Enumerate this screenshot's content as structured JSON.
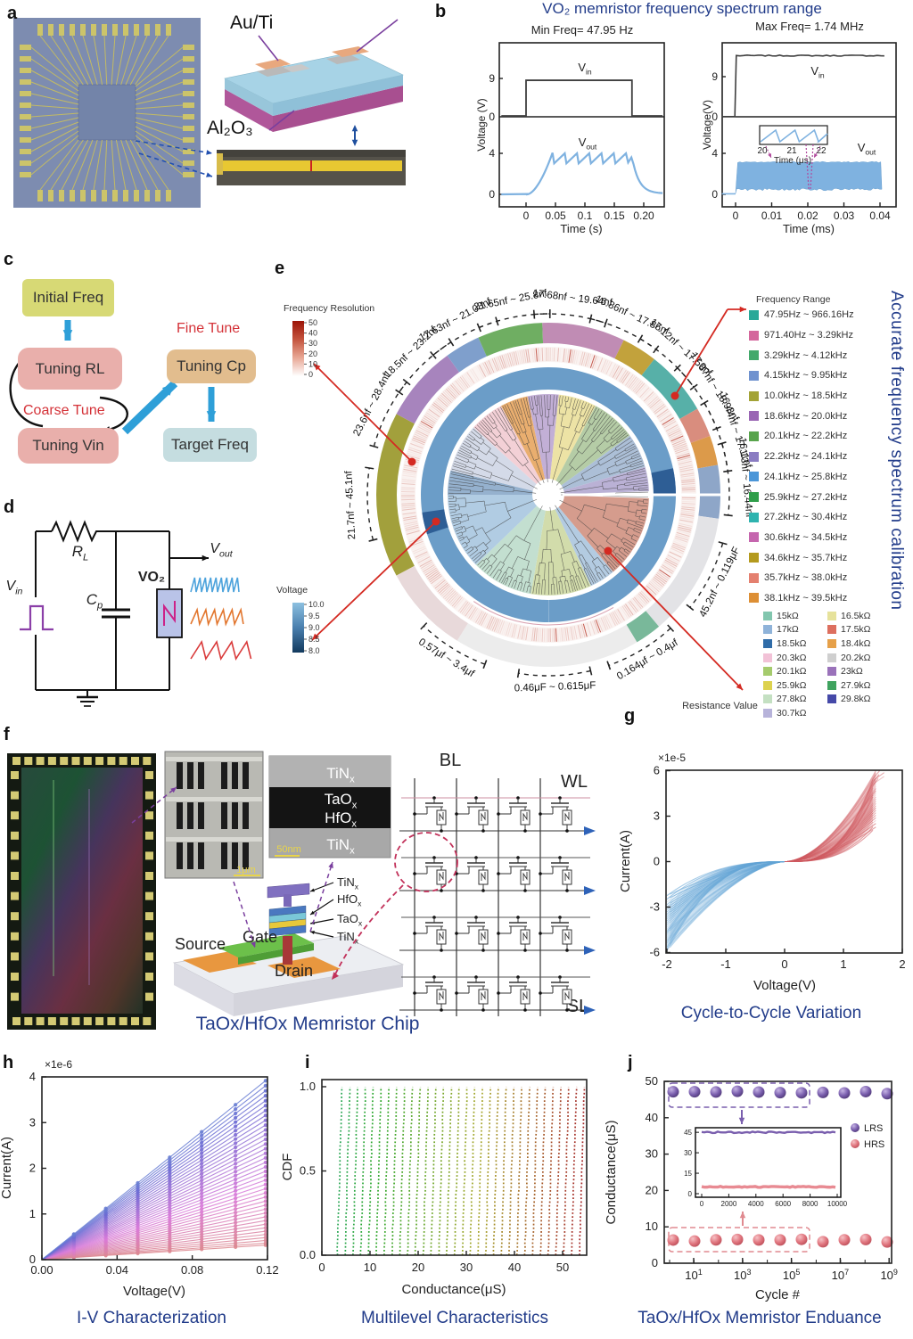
{
  "colors": {
    "caption": "#223c8a",
    "red_accent": "#d42a22",
    "blue_arrow": "#2e9fd8",
    "vout_blue": "#7fb2e0",
    "vin_gray": "#3f3f3f",
    "purple_arrow": "#7a3f9e",
    "magenta": "#b0489c"
  },
  "panel_a": {
    "letter": "a",
    "au_ti": "Au/Ti",
    "al2o3": "Al₂O₃"
  },
  "panel_b": {
    "letter": "b",
    "title": "VO₂ memristor frequency spectrum range",
    "left": {
      "subtitle": "Min Freq= 47.95 Hz",
      "ylabel": "Voltage (V)",
      "xlabel": "Time (s)",
      "vin_label": [
        "V",
        "in"
      ],
      "vout_label": [
        "V",
        "out"
      ],
      "x_ticks": [
        "0",
        "0.05",
        "0.1",
        "0.15",
        "0.20"
      ],
      "vin_ticks": [
        "9",
        "0"
      ],
      "vout_ticks": [
        "4",
        "0"
      ]
    },
    "right": {
      "subtitle": "Max Freq= 1.74 MHz",
      "ylabel": "Voltage(V)",
      "xlabel": "Time (ms)",
      "vin_label": [
        "V",
        "in"
      ],
      "vout_label": [
        "V",
        "out"
      ],
      "x_ticks": [
        "0",
        "0.01",
        "0.02",
        "0.03",
        "0.04"
      ],
      "vin_ticks": [
        "9",
        "0"
      ],
      "vout_ticks": [
        "4",
        "0"
      ],
      "inset_ticks": [
        "20",
        "21",
        "22"
      ],
      "inset_xlabel": "Time (μs)"
    }
  },
  "panel_c": {
    "letter": "c",
    "boxes": {
      "initial": {
        "label": "Initial Freq",
        "color": "#d7d975"
      },
      "rl": {
        "label": "Tuning RL",
        "color": "#e9afab"
      },
      "vin": {
        "label": "Tuning Vin",
        "color": "#e9afab"
      },
      "cp": {
        "label": "Tuning Cp",
        "color": "#e2bd8e"
      },
      "target": {
        "label": "Target Freq",
        "color": "#c5dde0"
      }
    },
    "coarse": "Coarse Tune",
    "fine": "Fine Tune"
  },
  "panel_d": {
    "letter": "d",
    "rl": [
      "R",
      "L"
    ],
    "cp": [
      "C",
      "p"
    ],
    "vo2": "VO₂",
    "vin": [
      "V",
      "in"
    ],
    "vout": [
      "V",
      "out"
    ]
  },
  "panel_e": {
    "letter": "e",
    "freq_res_legend": {
      "title": "Frequency Resolution",
      "ticks": [
        "50",
        "40",
        "30",
        "20",
        "10",
        "0"
      ]
    },
    "voltage_legend": {
      "title": "Voltage",
      "ticks": [
        "10.0",
        "9.5",
        "9.0",
        "8.5",
        "8.0"
      ]
    },
    "freq_range_legend": {
      "title": "Frequency Range",
      "items": [
        {
          "color": "#29a898",
          "label": "47.95Hz ~ 966.16Hz"
        },
        {
          "color": "#d4679c",
          "label": "971.40Hz ~ 3.29kHz"
        },
        {
          "color": "#43a96b",
          "label": "3.29kHz ~ 4.12kHz"
        },
        {
          "color": "#6f92cf",
          "label": "4.15kHz ~ 9.95kHz"
        },
        {
          "color": "#a3a336",
          "label": "10.0kHz ~ 18.5kHz"
        },
        {
          "color": "#9a66b4",
          "label": "18.6kHz ~ 20.0kHz"
        },
        {
          "color": "#58a44c",
          "label": "20.1kHz ~ 22.2kHz"
        },
        {
          "color": "#8a7cc2",
          "label": "22.2kHz ~ 24.1kHz"
        },
        {
          "color": "#4b96d8",
          "label": "24.1kHz ~ 25.8kHz"
        },
        {
          "color": "#2f9e4a",
          "label": "25.9kHz ~ 27.2kHz"
        },
        {
          "color": "#2fb3af",
          "label": "27.2kHz ~ 30.4kHz"
        },
        {
          "color": "#c566ae",
          "label": "30.6kHz ~ 34.5kHz"
        },
        {
          "color": "#b49a1e",
          "label": "34.6kHz ~ 35.7kHz"
        },
        {
          "color": "#e4806f",
          "label": "35.7kHz ~ 38.0kHz"
        },
        {
          "color": "#dd8f35",
          "label": "38.1kHz ~ 39.5kHz"
        }
      ]
    },
    "resistance_legend": {
      "title": "Resistance Value",
      "col1": [
        {
          "color": "#82c6ae",
          "label": "15kΩ"
        },
        {
          "color": "#8fb3d9",
          "label": "17kΩ"
        },
        {
          "color": "#2f6ca8",
          "label": "18.5kΩ"
        },
        {
          "color": "#f2c2d7",
          "label": "20.3kΩ"
        },
        {
          "color": "#a5cb6d",
          "label": "20.1kΩ"
        },
        {
          "color": "#ddd24e",
          "label": "25.9kΩ"
        },
        {
          "color": "#c4e0c2",
          "label": "27.8kΩ"
        },
        {
          "color": "#b7b3da",
          "label": "30.7kΩ"
        }
      ],
      "col2": [
        {
          "color": "#e6e29b",
          "label": "16.5kΩ"
        },
        {
          "color": "#dd6f5f",
          "label": "17.5kΩ"
        },
        {
          "color": "#e6a049",
          "label": "18.4kΩ"
        },
        {
          "color": "#cfcfcf",
          "label": "20.2kΩ"
        },
        {
          "color": "#9a72ba",
          "label": "23kΩ"
        },
        {
          "color": "#3fa35f",
          "label": "27.9kΩ"
        },
        {
          "color": "#4549a8",
          "label": "29.8kΩ"
        }
      ]
    },
    "side_title": "Accurate frequency spectrum calibration"
  },
  "panel_f": {
    "letter": "f",
    "sem_scale": "1μm",
    "tem_scale": "50nm",
    "tem_layers": [
      [
        "TiN",
        "x"
      ],
      [
        "TaO",
        "x"
      ],
      [
        "HfO",
        "x"
      ],
      [
        "TiN",
        "x"
      ]
    ],
    "stack_labels": [
      [
        "TiN",
        "x"
      ],
      [
        "HfO",
        "x"
      ],
      [
        "TaO",
        "x"
      ],
      [
        "TiN",
        "x"
      ]
    ],
    "source": "Source",
    "gate": "Gate",
    "drain": "Drain",
    "bl": "BL",
    "wl": "WL",
    "sl": "SL",
    "caption": "TaOx/HfOx Memristor Chip"
  },
  "panel_g": {
    "letter": "g",
    "caption": "Cycle-to-Cycle Variation"
  },
  "panel_h": {
    "letter": "h",
    "caption": "I-V Characterization"
  },
  "panel_i": {
    "letter": "i",
    "caption": "Multilevel Characteristics"
  },
  "panel_j": {
    "letter": "j",
    "caption": "TaOx/HfOx  Memristor Enduance",
    "legend": [
      "LRS",
      "HRS"
    ]
  },
  "chart_data": [
    {
      "panel": "b-left",
      "type": "line",
      "title": "Min Freq= 47.95 Hz",
      "xlabel": "Time (s)",
      "ylabel": "Voltage (V)",
      "xlim": [
        -0.045,
        0.235
      ],
      "x_ticks": [
        0,
        0.05,
        0.1,
        0.15,
        0.2
      ],
      "series": [
        {
          "name": "Vin",
          "color": "#3f3f3f",
          "shape": "pulse",
          "high": 8.5,
          "low": 0,
          "t_on": 0,
          "t_off": 0.18,
          "axis_ticks": [
            9,
            0
          ]
        },
        {
          "name": "Vout",
          "color": "#7fb2e0",
          "shape": "relaxation-oscillation",
          "peak": 4.05,
          "trough": 3.0,
          "t_rise_end": 0.045,
          "t_end": 0.18,
          "period": 0.0208,
          "decay_to": 0.1,
          "axis_ticks": [
            4,
            0
          ]
        }
      ]
    },
    {
      "panel": "b-right",
      "type": "line",
      "title": "Max Freq= 1.74 MHz",
      "xlabel": "Time (ms)",
      "ylabel": "Voltage(V)",
      "xlim": [
        -0.004,
        0.0435
      ],
      "x_ticks": [
        0,
        0.01,
        0.02,
        0.03,
        0.04
      ],
      "series": [
        {
          "name": "Vin",
          "color": "#3f3f3f",
          "shape": "step",
          "high": 14,
          "step_at": 0,
          "axis_ticks": [
            9,
            0
          ]
        },
        {
          "name": "Vout",
          "color": "#7fb2e0",
          "shape": "dense-oscillation-band",
          "band_low": 0.35,
          "band_high": 3.2,
          "t_start": 0,
          "t_end": 0.0405,
          "axis_ticks": [
            4,
            0
          ]
        }
      ],
      "inset": {
        "x_ticks": [
          20,
          21,
          22
        ],
        "xlabel": "Time (μs)",
        "waveform": "sawtooth",
        "cycles": 3.5
      }
    },
    {
      "panel": "e",
      "type": "circular-dendrogram",
      "cap_labels": [
        {
          "angle": -93,
          "text": "21.7nf ~ 45.1nf"
        },
        {
          "angle": -63,
          "text": "23.6nf ~ 28.4nf"
        },
        {
          "angle": -44,
          "text": "18.5nf ~ 23.2nf"
        },
        {
          "angle": -28,
          "text": "17.63nf ~ 21.08nf"
        },
        {
          "angle": -11,
          "text": "21.65nf ~ 25.8nf"
        },
        {
          "angle": 7,
          "text": "17.68nf ~ 19.64nf"
        },
        {
          "angle": 25,
          "text": "16.86nf ~ 17.86nf"
        },
        {
          "angle": 42,
          "text": "17.12nf ~ 17.50nf"
        },
        {
          "angle": 57,
          "text": "17.87nf ~ 18.93nf"
        },
        {
          "angle": 71,
          "text": "16.44nf ~ 17.11nf"
        },
        {
          "angle": 85,
          "text": "16.13nf ~ 16.44nf"
        },
        {
          "angle": 117,
          "text": "45.2nf ~ 0.119μF"
        },
        {
          "angle": 149,
          "text": "0.164μf ~ 0.4μf"
        },
        {
          "angle": 178,
          "text": "0.46μF ~ 0.615μF"
        },
        {
          "angle": 212,
          "text": "0.57μf ~ 3.4μf"
        }
      ],
      "freq_resolution_scale": [
        50,
        40,
        30,
        20,
        10,
        0
      ],
      "voltage_scale": [
        10.0,
        9.5,
        9.0,
        8.5,
        8.0
      ],
      "wedges": [
        [
          -48,
          -28,
          "#f2cbd1"
        ],
        [
          -28,
          -12,
          "#e7a55f"
        ],
        [
          -12,
          6,
          "#bba6d1"
        ],
        [
          6,
          28,
          "#ebe09b"
        ],
        [
          28,
          54,
          "#adc79c"
        ],
        [
          54,
          74,
          "#a3b8d3"
        ],
        [
          74,
          88,
          "#b3a8d0"
        ],
        [
          92,
          140,
          "#d09181"
        ],
        [
          140,
          155,
          "#abc5de"
        ],
        [
          155,
          190,
          "#cdd8a2"
        ],
        [
          190,
          226,
          "#bcdccb"
        ],
        [
          226,
          270,
          "#a9c6e0"
        ],
        [
          270,
          284,
          "#8aa8c9"
        ],
        [
          284,
          312,
          "#cfd6e6"
        ]
      ],
      "ring_segments": [
        [
          -118,
          -62,
          "#a2a03c"
        ],
        [
          -62,
          -36,
          "#a784bd"
        ],
        [
          -36,
          -24,
          "#7f9fcc"
        ],
        [
          -24,
          -2,
          "#6fae62"
        ],
        [
          -2,
          26,
          "#c08cb4"
        ],
        [
          26,
          38,
          "#c2a23c"
        ],
        [
          38,
          60,
          "#57b0a8"
        ],
        [
          60,
          70,
          "#d98d7e"
        ],
        [
          70,
          80,
          "#dc9a4a"
        ],
        [
          80,
          98,
          "#8ea6c8"
        ],
        [
          98,
          140,
          "#e3e3e6"
        ],
        [
          140,
          149,
          "#79b89a"
        ],
        [
          149,
          212,
          "#ececec"
        ],
        [
          212,
          242,
          "#e8d9da"
        ]
      ],
      "blue_ring_color": "#6b9dc8",
      "blue_ring_dark_segments": [
        [
          78,
          90
        ],
        [
          252,
          262
        ]
      ]
    },
    {
      "panel": "g",
      "type": "line",
      "title": "Cycle-to-Cycle Variation",
      "xlabel": "Voltage(V)",
      "ylabel": "Current(A)",
      "scale_note": "×1e-5",
      "xlim": [
        -2,
        2
      ],
      "ylim": [
        -6,
        6
      ],
      "x_ticks": [
        "-2",
        "-1",
        "0",
        "1",
        "2"
      ],
      "y_ticks": [
        "6",
        "3",
        "0",
        "-3",
        "-6"
      ],
      "n_cycles": 26,
      "pos_color": "#cf5a60",
      "neg_color": "#64a5d6",
      "v_set_flat": [
        1.55,
        1.7
      ],
      "i_max": 6
    },
    {
      "panel": "h",
      "type": "line",
      "title": "I-V Characterization",
      "xlabel": "Voltage(V)",
      "ylabel": "Current(A)",
      "scale_note": "×1e-6",
      "xlim": [
        0,
        0.12
      ],
      "ylim": [
        0,
        4
      ],
      "x_ticks": [
        "0.00",
        "0.04",
        "0.08",
        "0.12"
      ],
      "y_ticks": [
        "0",
        "1",
        "2",
        "3",
        "4"
      ],
      "n_lines": 40,
      "i_at_vmax_range": [
        0.32,
        3.95
      ],
      "marker_x": [
        0.017,
        0.034,
        0.051,
        0.068,
        0.085,
        0.103,
        0.119
      ],
      "low_color": "#e08790",
      "high_color": "#7f9bdc"
    },
    {
      "panel": "i",
      "type": "cdf",
      "title": "Multilevel Characteristics",
      "xlabel": "Conductance(μS)",
      "ylabel": "CDF",
      "xlim": [
        0,
        55
      ],
      "ylim": [
        0,
        1.07
      ],
      "x_ticks": [
        "0",
        "10",
        "20",
        "30",
        "40",
        "50"
      ],
      "y_ticks": [
        "0.0",
        "0.5",
        "1.0"
      ],
      "n_levels": 32,
      "conductance_range": [
        3.2,
        53.5
      ],
      "color_scale": "green-yellow-red"
    },
    {
      "panel": "j",
      "type": "scatter-log",
      "title": "TaOx/HfOx Memristor Enduance",
      "xlabel": "Cycle #",
      "ylabel": "Conductance(μS)",
      "ylim": [
        0,
        50
      ],
      "y_ticks": [
        "0",
        "10",
        "20",
        "30",
        "40",
        "50"
      ],
      "x_tick_labels": [
        [
          "10",
          "1"
        ],
        [
          "10",
          "3"
        ],
        [
          "10",
          "5"
        ],
        [
          "10",
          "7"
        ],
        [
          "10",
          "9"
        ]
      ],
      "n_points": 11,
      "series": [
        {
          "name": "LRS",
          "color": "#7a5fae",
          "value": 47
        },
        {
          "name": "HRS",
          "color": "#e77f86",
          "value": 6.2
        }
      ],
      "inset": {
        "x_ticks": [
          "0",
          "2000",
          "4000",
          "6000",
          "8000",
          "10000"
        ],
        "y_ticks": [
          "45",
          "30",
          "15",
          "0"
        ],
        "lrs_value": 45,
        "hrs_value": 5
      }
    }
  ]
}
